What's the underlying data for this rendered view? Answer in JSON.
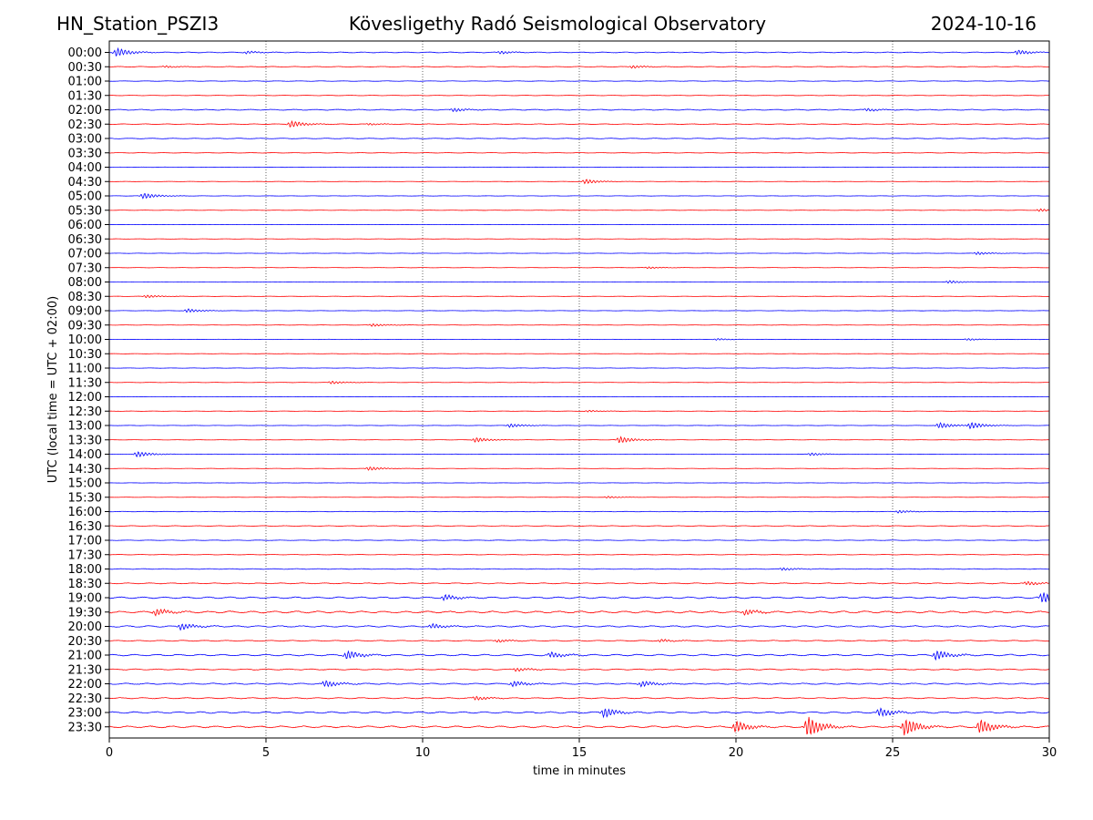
{
  "header": {
    "station": "HN_Station_PSZI3",
    "observatory": "Kövesligethy Radó Seismological Observatory",
    "date": "2024-10-16"
  },
  "chart_data": {
    "type": "line",
    "title": "Kövesligethy Radó Seismological Observatory",
    "xlabel": "time in minutes",
    "ylabel": "UTC (local time = UTC + 02:00)",
    "xlim": [
      0,
      30
    ],
    "x_ticks": [
      "0",
      "5",
      "10",
      "15",
      "20",
      "25",
      "30"
    ],
    "grid": "vertical dotted at 5-minute intervals",
    "colors": {
      "even_rows": "#0000ff",
      "odd_rows": "#ff0000"
    },
    "rows": [
      {
        "label": "00:00",
        "noise": 0.25,
        "events": [
          [
            0.25,
            0.9
          ],
          [
            4.4,
            0.3
          ],
          [
            12.5,
            0.3
          ],
          [
            29.0,
            0.5
          ]
        ]
      },
      {
        "label": "00:30",
        "noise": 0.2,
        "events": [
          [
            1.8,
            0.2
          ],
          [
            16.7,
            0.3
          ]
        ]
      },
      {
        "label": "01:00",
        "noise": 0.15,
        "events": []
      },
      {
        "label": "01:30",
        "noise": 0.15,
        "events": []
      },
      {
        "label": "02:00",
        "noise": 0.3,
        "events": [
          [
            11.0,
            0.4
          ],
          [
            24.2,
            0.3
          ]
        ]
      },
      {
        "label": "02:30",
        "noise": 0.2,
        "events": [
          [
            5.8,
            0.7
          ],
          [
            8.3,
            0.2
          ]
        ]
      },
      {
        "label": "03:00",
        "noise": 0.2,
        "events": []
      },
      {
        "label": "03:30",
        "noise": 0.15,
        "events": []
      },
      {
        "label": "04:00",
        "noise": 0.1,
        "events": []
      },
      {
        "label": "04:30",
        "noise": 0.1,
        "events": [
          [
            15.2,
            0.5
          ]
        ]
      },
      {
        "label": "05:00",
        "noise": 0.1,
        "events": [
          [
            1.1,
            0.6
          ]
        ]
      },
      {
        "label": "05:30",
        "noise": 0.1,
        "events": [
          [
            29.7,
            0.3
          ]
        ]
      },
      {
        "label": "06:00",
        "noise": 0.08,
        "events": []
      },
      {
        "label": "06:30",
        "noise": 0.1,
        "events": []
      },
      {
        "label": "07:00",
        "noise": 0.1,
        "events": [
          [
            27.7,
            0.3
          ]
        ]
      },
      {
        "label": "07:30",
        "noise": 0.1,
        "events": [
          [
            17.2,
            0.2
          ]
        ]
      },
      {
        "label": "08:00",
        "noise": 0.1,
        "events": [
          [
            26.8,
            0.3
          ]
        ]
      },
      {
        "label": "08:30",
        "noise": 0.1,
        "events": [
          [
            1.2,
            0.3
          ]
        ]
      },
      {
        "label": "09:00",
        "noise": 0.1,
        "events": [
          [
            2.5,
            0.4
          ]
        ]
      },
      {
        "label": "09:30",
        "noise": 0.1,
        "events": [
          [
            8.4,
            0.3
          ]
        ]
      },
      {
        "label": "10:00",
        "noise": 0.1,
        "events": [
          [
            19.4,
            0.2
          ],
          [
            27.4,
            0.2
          ]
        ]
      },
      {
        "label": "10:30",
        "noise": 0.1,
        "events": []
      },
      {
        "label": "11:00",
        "noise": 0.1,
        "events": []
      },
      {
        "label": "11:30",
        "noise": 0.1,
        "events": [
          [
            7.1,
            0.3
          ]
        ]
      },
      {
        "label": "12:00",
        "noise": 0.08,
        "events": []
      },
      {
        "label": "12:30",
        "noise": 0.1,
        "events": [
          [
            15.3,
            0.2
          ]
        ]
      },
      {
        "label": "13:00",
        "noise": 0.1,
        "events": [
          [
            12.8,
            0.4
          ],
          [
            26.5,
            0.6
          ],
          [
            27.5,
            0.7
          ]
        ]
      },
      {
        "label": "13:30",
        "noise": 0.1,
        "events": [
          [
            11.7,
            0.5
          ],
          [
            16.3,
            0.7
          ]
        ]
      },
      {
        "label": "14:00",
        "noise": 0.1,
        "events": [
          [
            0.9,
            0.6
          ],
          [
            22.4,
            0.3
          ]
        ]
      },
      {
        "label": "14:30",
        "noise": 0.1,
        "events": [
          [
            8.3,
            0.4
          ]
        ]
      },
      {
        "label": "15:00",
        "noise": 0.08,
        "events": []
      },
      {
        "label": "15:30",
        "noise": 0.08,
        "events": [
          [
            15.9,
            0.2
          ]
        ]
      },
      {
        "label": "16:00",
        "noise": 0.15,
        "events": [
          [
            25.2,
            0.3
          ]
        ]
      },
      {
        "label": "16:30",
        "noise": 0.2,
        "events": []
      },
      {
        "label": "17:00",
        "noise": 0.15,
        "events": []
      },
      {
        "label": "17:30",
        "noise": 0.15,
        "events": []
      },
      {
        "label": "18:00",
        "noise": 0.2,
        "events": [
          [
            21.5,
            0.3
          ]
        ]
      },
      {
        "label": "18:30",
        "noise": 0.3,
        "events": [
          [
            29.3,
            0.4
          ]
        ]
      },
      {
        "label": "19:00",
        "noise": 0.5,
        "events": [
          [
            10.7,
            0.6
          ],
          [
            29.8,
            1.2
          ]
        ]
      },
      {
        "label": "19:30",
        "noise": 0.6,
        "events": [
          [
            1.5,
            0.7
          ],
          [
            20.3,
            0.6
          ]
        ]
      },
      {
        "label": "20:00",
        "noise": 0.45,
        "events": [
          [
            2.3,
            0.7
          ],
          [
            10.3,
            0.5
          ]
        ]
      },
      {
        "label": "20:30",
        "noise": 0.3,
        "events": [
          [
            12.4,
            0.3
          ],
          [
            17.6,
            0.3
          ]
        ]
      },
      {
        "label": "21:00",
        "noise": 0.5,
        "events": [
          [
            7.6,
            0.9
          ],
          [
            14.1,
            0.6
          ],
          [
            26.4,
            1.0
          ]
        ]
      },
      {
        "label": "21:30",
        "noise": 0.35,
        "events": [
          [
            13.0,
            0.4
          ]
        ]
      },
      {
        "label": "22:00",
        "noise": 0.4,
        "events": [
          [
            6.9,
            0.7
          ],
          [
            12.9,
            0.6
          ],
          [
            17.0,
            0.6
          ]
        ]
      },
      {
        "label": "22:30",
        "noise": 0.35,
        "events": [
          [
            11.7,
            0.4
          ]
        ]
      },
      {
        "label": "23:00",
        "noise": 0.5,
        "events": [
          [
            15.8,
            1.0
          ],
          [
            24.6,
            0.9
          ]
        ]
      },
      {
        "label": "23:30",
        "noise": 0.55,
        "events": [
          [
            22.3,
            2.2
          ],
          [
            25.4,
            1.8
          ],
          [
            27.8,
            1.5
          ],
          [
            20.0,
            1.2
          ]
        ]
      }
    ]
  }
}
